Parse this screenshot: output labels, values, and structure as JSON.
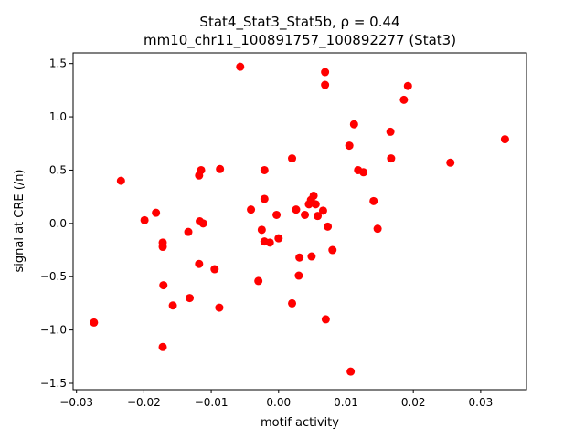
{
  "chart_data": {
    "type": "scatter",
    "title_line1": "Stat4_Stat3_Stat5b, ρ = 0.44",
    "title_line2": "mm10_chr11_100891757_100892277 (Stat3)",
    "xlabel": "motif activity",
    "ylabel": "signal at CRE (/n)",
    "xlim": [
      -0.0305,
      0.0368
    ],
    "ylim": [
      -1.56,
      1.6
    ],
    "xticks": [
      -0.03,
      -0.02,
      -0.01,
      0.0,
      0.01,
      0.02,
      0.03
    ],
    "xtick_labels": [
      "−0.03",
      "−0.02",
      "−0.01",
      "0.00",
      "0.01",
      "0.02",
      "0.03"
    ],
    "yticks": [
      -1.5,
      -1.0,
      -0.5,
      0.0,
      0.5,
      1.0,
      1.5
    ],
    "ytick_labels": [
      "−1.5",
      "−1.0",
      "−0.5",
      "0.0",
      "0.5",
      "1.0",
      "1.5"
    ],
    "grid": false,
    "marker_color": "#ff0000",
    "points": [
      [
        -0.0274,
        -0.93
      ],
      [
        -0.0234,
        0.4
      ],
      [
        -0.0199,
        0.03
      ],
      [
        -0.0182,
        0.1
      ],
      [
        -0.0172,
        -0.18
      ],
      [
        -0.0172,
        -0.22
      ],
      [
        -0.0171,
        -0.58
      ],
      [
        -0.0172,
        -1.16
      ],
      [
        -0.0157,
        -0.77
      ],
      [
        -0.0134,
        -0.08
      ],
      [
        -0.0132,
        -0.7
      ],
      [
        -0.0118,
        0.45
      ],
      [
        -0.0115,
        0.5
      ],
      [
        -0.0117,
        0.02
      ],
      [
        -0.0112,
        0.0
      ],
      [
        -0.0118,
        -0.38
      ],
      [
        -0.0095,
        -0.43
      ],
      [
        -0.0087,
        0.51
      ],
      [
        -0.0088,
        -0.79
      ],
      [
        -0.0057,
        1.47
      ],
      [
        -0.0041,
        0.13
      ],
      [
        -0.003,
        -0.54
      ],
      [
        -0.0025,
        -0.06
      ],
      [
        -0.0021,
        0.5
      ],
      [
        -0.0021,
        0.23
      ],
      [
        -0.0021,
        -0.17
      ],
      [
        -0.0013,
        -0.18
      ],
      [
        -0.0003,
        0.08
      ],
      [
        0.0,
        -0.14
      ],
      [
        0.002,
        0.61
      ],
      [
        0.002,
        -0.75
      ],
      [
        0.0026,
        0.13
      ],
      [
        0.003,
        -0.49
      ],
      [
        0.0031,
        -0.32
      ],
      [
        0.0039,
        0.08
      ],
      [
        0.0045,
        0.18
      ],
      [
        0.0048,
        0.22
      ],
      [
        0.0049,
        -0.31
      ],
      [
        0.0052,
        0.26
      ],
      [
        0.0055,
        0.18
      ],
      [
        0.0058,
        0.07
      ],
      [
        0.0066,
        0.12
      ],
      [
        0.0069,
        1.42
      ],
      [
        0.0069,
        1.3
      ],
      [
        0.007,
        -0.9
      ],
      [
        0.0073,
        -0.03
      ],
      [
        0.008,
        -0.25
      ],
      [
        0.0105,
        0.73
      ],
      [
        0.0107,
        -1.39
      ],
      [
        0.0112,
        0.93
      ],
      [
        0.0118,
        0.5
      ],
      [
        0.0126,
        0.48
      ],
      [
        0.0141,
        0.21
      ],
      [
        0.0147,
        -0.05
      ],
      [
        0.0166,
        0.86
      ],
      [
        0.0167,
        0.61
      ],
      [
        0.0186,
        1.16
      ],
      [
        0.0192,
        1.29
      ],
      [
        0.0255,
        0.57
      ],
      [
        0.0336,
        0.79
      ]
    ]
  }
}
